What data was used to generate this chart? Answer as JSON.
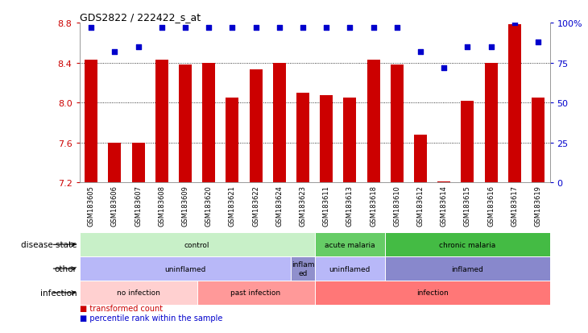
{
  "title": "GDS2822 / 222422_s_at",
  "samples": [
    "GSM183605",
    "GSM183606",
    "GSM183607",
    "GSM183608",
    "GSM183609",
    "GSM183620",
    "GSM183621",
    "GSM183622",
    "GSM183624",
    "GSM183623",
    "GSM183611",
    "GSM183613",
    "GSM183618",
    "GSM183610",
    "GSM183612",
    "GSM183614",
    "GSM183615",
    "GSM183616",
    "GSM183617",
    "GSM183619"
  ],
  "bar_values": [
    8.43,
    7.6,
    7.6,
    8.43,
    8.38,
    8.4,
    8.05,
    8.33,
    8.4,
    8.1,
    8.07,
    8.05,
    8.43,
    8.38,
    7.68,
    7.21,
    8.02,
    8.4,
    8.78,
    8.05
  ],
  "dot_values": [
    97,
    82,
    85,
    97,
    97,
    97,
    97,
    97,
    97,
    97,
    97,
    97,
    97,
    97,
    82,
    72,
    85,
    85,
    100,
    88
  ],
  "ylim": [
    7.2,
    8.8
  ],
  "yticks": [
    7.2,
    7.6,
    8.0,
    8.4,
    8.8
  ],
  "y2lim": [
    0,
    100
  ],
  "y2ticks": [
    0,
    25,
    50,
    75,
    100
  ],
  "y2ticklabels": [
    "0",
    "25",
    "50",
    "75",
    "100%"
  ],
  "bar_color": "#cc0000",
  "dot_color": "#0000cc",
  "annotation_rows": [
    {
      "label": "disease state",
      "segments": [
        {
          "text": "control",
          "start": 0,
          "end": 10,
          "color": "#c8f0c8"
        },
        {
          "text": "acute malaria",
          "start": 10,
          "end": 13,
          "color": "#66cc66"
        },
        {
          "text": "chronic malaria",
          "start": 13,
          "end": 20,
          "color": "#44bb44"
        }
      ]
    },
    {
      "label": "other",
      "segments": [
        {
          "text": "uninflamed",
          "start": 0,
          "end": 9,
          "color": "#b8b8f8"
        },
        {
          "text": "inflam\ned",
          "start": 9,
          "end": 10,
          "color": "#9090cc"
        },
        {
          "text": "uninflamed",
          "start": 10,
          "end": 13,
          "color": "#b8b8f8"
        },
        {
          "text": "inflamed",
          "start": 13,
          "end": 20,
          "color": "#8888cc"
        }
      ]
    },
    {
      "label": "infection",
      "segments": [
        {
          "text": "no infection",
          "start": 0,
          "end": 5,
          "color": "#ffd0d0"
        },
        {
          "text": "past infection",
          "start": 5,
          "end": 10,
          "color": "#ff9999"
        },
        {
          "text": "infection",
          "start": 10,
          "end": 20,
          "color": "#ff7777"
        }
      ]
    }
  ],
  "legend_items": [
    {
      "color": "#cc0000",
      "label": "transformed count"
    },
    {
      "color": "#0000cc",
      "label": "percentile rank within the sample"
    }
  ]
}
